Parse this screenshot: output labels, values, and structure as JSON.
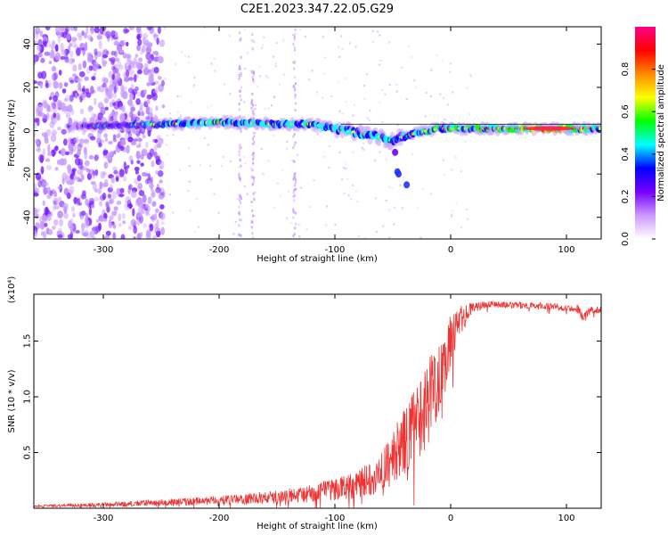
{
  "title": "C2E1.2023.347.22.05.G29",
  "chart_data": [
    {
      "type": "heatmap",
      "xlabel": "Height of straight line (km)",
      "ylabel": "Frequency (Hz)",
      "xlim": [
        -360,
        130
      ],
      "ylim": [
        -50,
        48
      ],
      "xticks": [
        -300,
        -200,
        -100,
        0,
        100
      ],
      "yticks": [
        -40,
        -20,
        0,
        20,
        40
      ],
      "grid": false,
      "colorbar": {
        "label": "Normalized spectral amplitude",
        "range": [
          0,
          1
        ],
        "ticks": [
          0.0,
          0.2,
          0.4,
          0.6,
          0.8
        ],
        "colormap": [
          "#ffffff",
          "#cc99ff",
          "#7700ff",
          "#0000ff",
          "#00ffff",
          "#00ff00",
          "#ffff00",
          "#ff8800",
          "#ff0000",
          "#ff0088"
        ]
      },
      "ridge": {
        "x": [
          -330,
          -250,
          -200,
          -150,
          -120,
          -100,
          -80,
          -60,
          -50,
          -45,
          -40,
          -30,
          -20,
          -10,
          0,
          20,
          50,
          80,
          100,
          130
        ],
        "y": [
          2,
          3,
          4,
          3,
          3,
          1,
          -1,
          -3,
          -5,
          -3,
          -3,
          -1,
          0,
          1,
          1,
          1,
          1,
          1,
          1,
          1
        ],
        "amplitude": [
          0.25,
          0.5,
          0.6,
          0.55,
          0.6,
          0.5,
          0.55,
          0.6,
          0.45,
          0.4,
          0.5,
          0.55,
          0.6,
          0.6,
          0.65,
          0.6,
          0.7,
          0.95,
          0.85,
          0.6
        ]
      },
      "noise_region": {
        "x": [
          -360,
          -248
        ],
        "amplitude_max": 0.15
      },
      "noise_note": "Scattered low-amplitude speckle across full frequency range; sparse columns near -180 and -170 km"
    },
    {
      "type": "line",
      "xlabel": "Height of straight line (km)",
      "ylabel": "SNR (10 * v/v)",
      "yunit_multiplier": "(x10⁴)",
      "xlim": [
        -360,
        130
      ],
      "ylim": [
        0,
        1.92
      ],
      "xticks": [
        -300,
        -200,
        -100,
        0,
        100
      ],
      "yticks": [
        0.5,
        1.0,
        1.5
      ],
      "ytick_labels": [
        "0.5",
        "1.0",
        "1.5"
      ],
      "color": "#ee3333",
      "grid": false,
      "series": [
        {
          "x": [
            -360,
            -300,
            -250,
            -200,
            -150,
            -120,
            -100,
            -80,
            -60,
            -50,
            -40,
            -30,
            -20,
            -10,
            0,
            10,
            20,
            30,
            40,
            50,
            70,
            90,
            100,
            110,
            115,
            120,
            130
          ],
          "y": [
            0.02,
            0.03,
            0.05,
            0.07,
            0.1,
            0.13,
            0.17,
            0.22,
            0.32,
            0.45,
            0.6,
            0.75,
            0.95,
            1.2,
            1.5,
            1.7,
            1.8,
            1.83,
            1.83,
            1.82,
            1.82,
            1.81,
            1.8,
            1.79,
            1.7,
            1.78,
            1.78
          ],
          "noise": [
            0.01,
            0.02,
            0.03,
            0.04,
            0.06,
            0.08,
            0.1,
            0.13,
            0.18,
            0.25,
            0.3,
            0.35,
            0.4,
            0.35,
            0.25,
            0.12,
            0.05,
            0.03,
            0.03,
            0.03,
            0.03,
            0.03,
            0.03,
            0.04,
            0.05,
            0.03,
            0.03
          ]
        }
      ]
    }
  ]
}
